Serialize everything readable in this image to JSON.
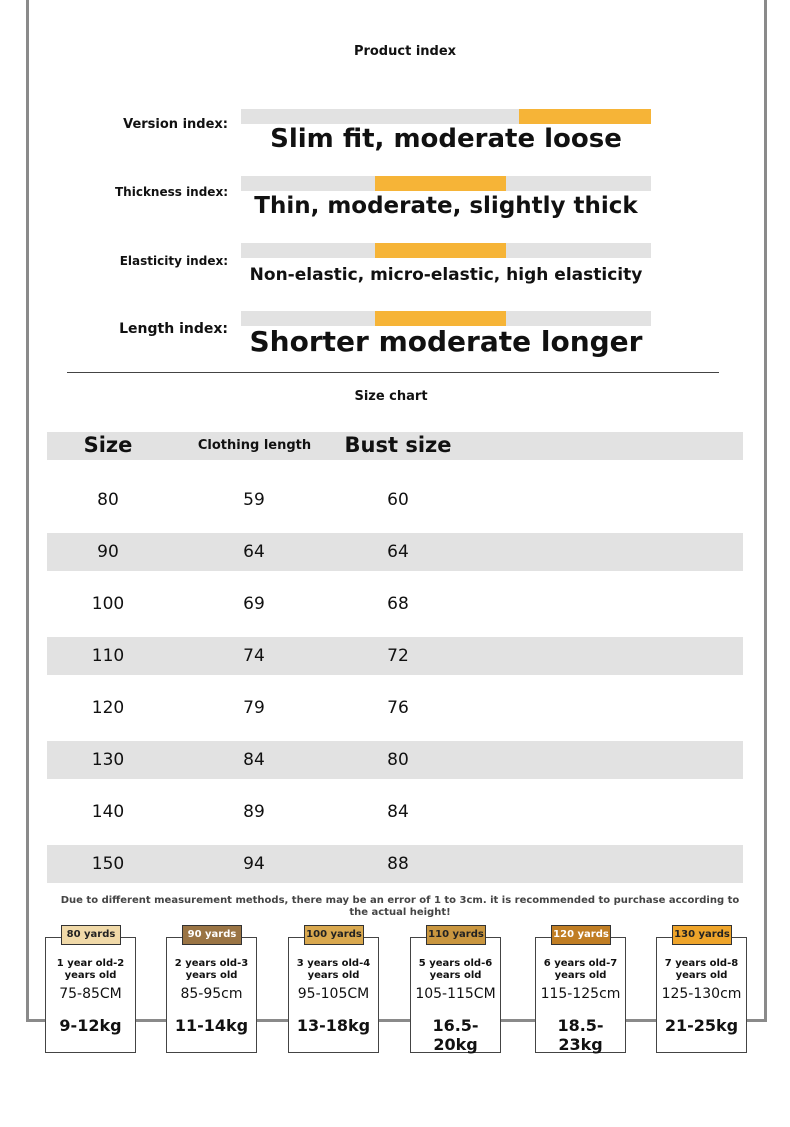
{
  "product_index": {
    "title": "Product index",
    "rows": [
      {
        "label": "Version index:",
        "desc": "Slim fit, moderate loose",
        "highlight": [
          0.677,
          1.0
        ]
      },
      {
        "label": "Thickness index:",
        "desc": "Thin, moderate, slightly thick",
        "highlight": [
          0.327,
          0.646
        ]
      },
      {
        "label": "Elasticity index:",
        "desc": "Non-elastic, micro-elastic, high elasticity",
        "highlight": [
          0.327,
          0.646
        ]
      },
      {
        "label": "Length index:",
        "desc": "Shorter moderate longer",
        "highlight": [
          0.327,
          0.646
        ]
      }
    ],
    "bar_color": "#f6b437",
    "track_color": "#e2e2e2"
  },
  "size_chart": {
    "title": "Size chart",
    "headers": [
      "Size",
      "Clothing length",
      "Bust size"
    ],
    "rows": [
      [
        "80",
        "59",
        "60"
      ],
      [
        "90",
        "64",
        "64"
      ],
      [
        "100",
        "69",
        "68"
      ],
      [
        "110",
        "74",
        "72"
      ],
      [
        "120",
        "79",
        "76"
      ],
      [
        "130",
        "84",
        "80"
      ],
      [
        "140",
        "89",
        "84"
      ],
      [
        "150",
        "94",
        "88"
      ]
    ],
    "note": "Due to different measurement methods, there may be an error of 1 to 3cm. it is recommended to purchase according to the actual height!"
  },
  "cards": [
    {
      "tag": "80 yards",
      "age": "1 year old-2 years old",
      "height": "75-85CM",
      "weight": "9-12kg",
      "tag_color": "#f0d9a8"
    },
    {
      "tag": "90 yards",
      "age": "2 years old-3 years old",
      "height": "85-95cm",
      "weight": "11-14kg",
      "tag_color": "#9a7444"
    },
    {
      "tag": "100 yards",
      "age": "3 years old-4 years old",
      "height": "95-105CM",
      "weight": "13-18kg",
      "tag_color": "#d9a84e"
    },
    {
      "tag": "110 yards",
      "age": "5 years old-6 years old",
      "height": "105-115CM",
      "weight": "16.5-20kg",
      "tag_color": "#c9963f"
    },
    {
      "tag": "120 yards",
      "age": "6 years old-7 years old",
      "height": "115-125cm",
      "weight": "18.5-23kg",
      "tag_color": "#c07d23"
    },
    {
      "tag": "130 yards",
      "age": "7 years old-8 years old",
      "height": "125-130cm",
      "weight": "21-25kg",
      "tag_color": "#eea42a"
    }
  ]
}
